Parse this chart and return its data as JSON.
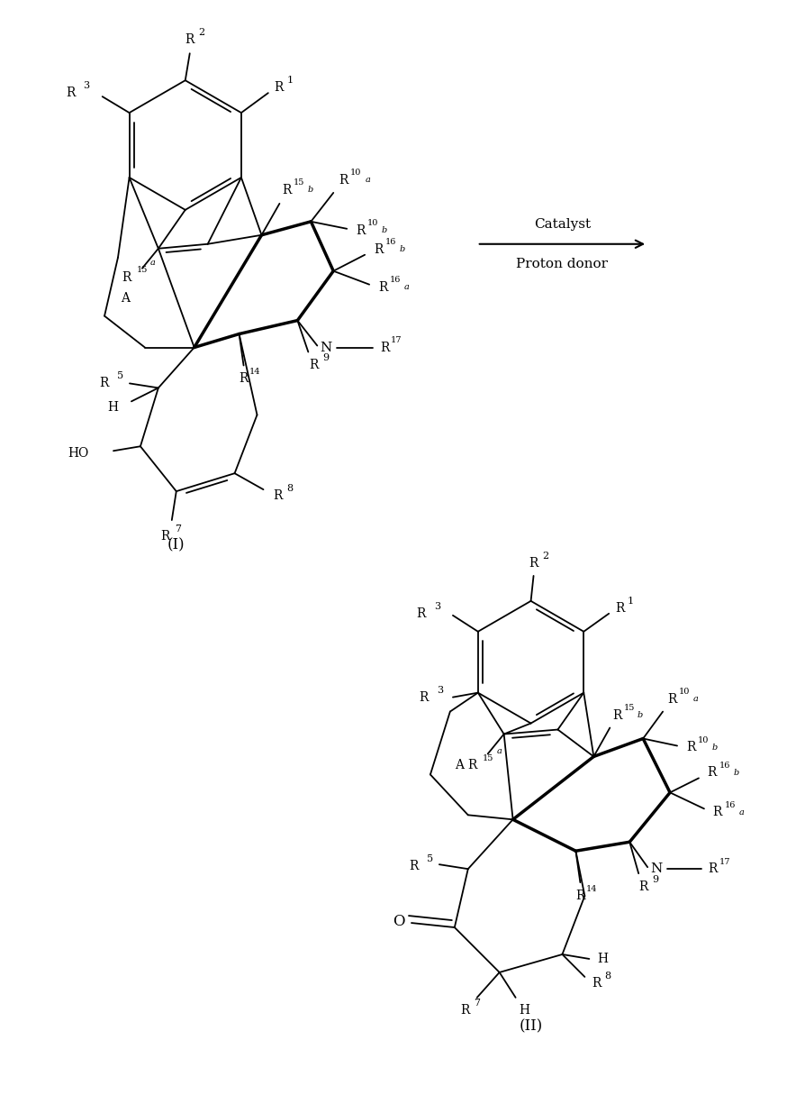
{
  "background_color": "#ffffff",
  "line_color": "#000000",
  "arrow_text_line1": "Catalyst",
  "arrow_text_line2": "Proton donor",
  "compound_I_label": "(I)",
  "compound_II_label": "(II)"
}
